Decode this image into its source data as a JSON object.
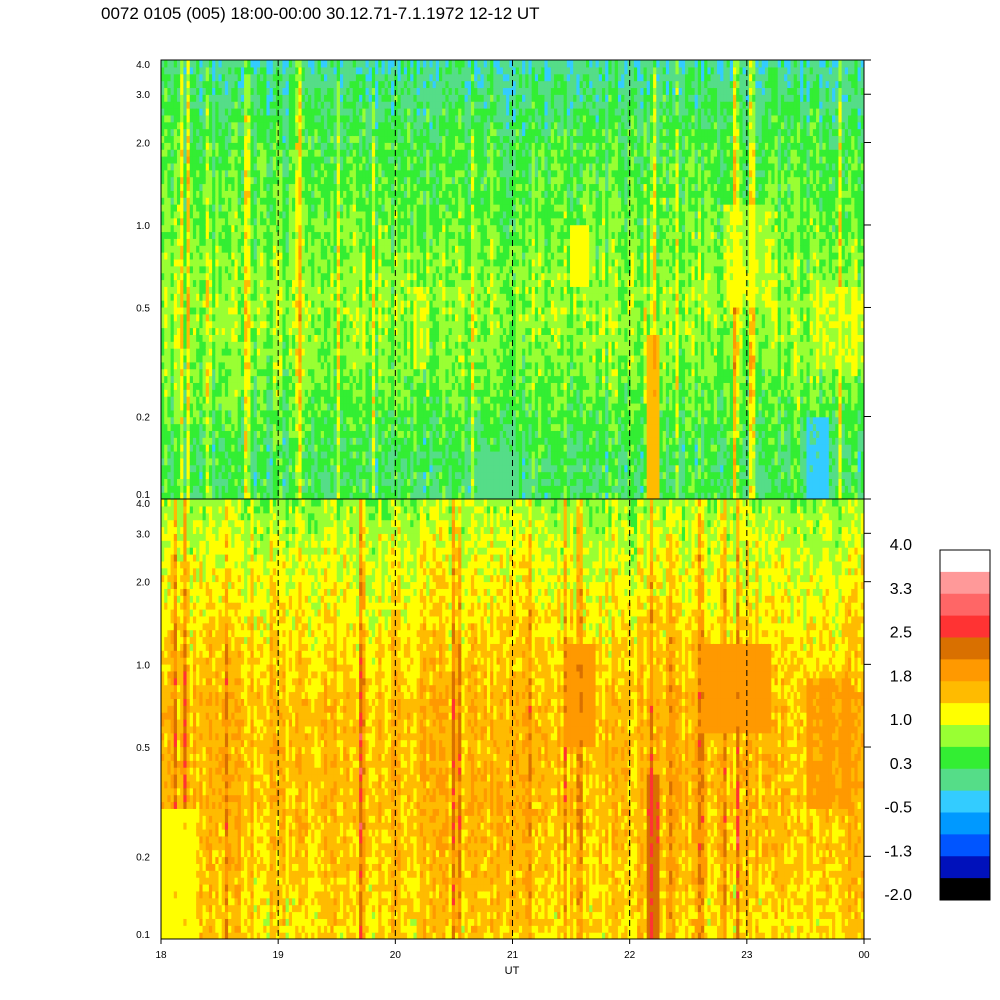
{
  "title": "0072 0105 (005) 18:00-00:00 30.12.71-7.1.1972  12-12 UT",
  "chart_data": {
    "type": "heatmap",
    "title": "0072 0105 (005) 18:00-00:00 30.12.71-7.1.1972  12-12 UT",
    "xlabel": "UT",
    "x_ticks": [
      "18",
      "19",
      "20",
      "21",
      "22",
      "23",
      "00"
    ],
    "x_range_hours_ut": [
      18,
      24
    ],
    "vertical_dashed_lines_ut": [
      19,
      20,
      21,
      22,
      23
    ],
    "y_scale": "log",
    "y_range": [
      0.1,
      4.0
    ],
    "panels": [
      {
        "name": "upper",
        "y_ticks": [
          "0.1",
          "0.2",
          "0.5",
          "1.0",
          "2.0",
          "3.0",
          "4.0"
        ],
        "y_tick_values": [
          0.1,
          0.2,
          0.5,
          1.0,
          2.0,
          3.0,
          4.0
        ],
        "background_level": 0.5,
        "level_by_height": [
          {
            "y": 0.1,
            "level": 0.3
          },
          {
            "y": 0.15,
            "level": 0.3
          },
          {
            "y": 0.25,
            "level": 0.6
          },
          {
            "y": 0.5,
            "level": 0.8
          },
          {
            "y": 1.0,
            "level": 0.6
          },
          {
            "y": 2.0,
            "level": 0.4
          },
          {
            "y": 4.0,
            "level": 0.0
          }
        ],
        "features": [
          {
            "t_start": 22.15,
            "t_end": 22.25,
            "y_from": 0.1,
            "y_to": 0.4,
            "level": 1.9
          },
          {
            "t_start": 21.5,
            "t_end": 21.65,
            "y_from": 0.6,
            "y_to": 1.0,
            "level": 1.4
          },
          {
            "t_start": 22.8,
            "t_end": 23.2,
            "y_from": 0.5,
            "y_to": 1.2,
            "level": 1.1
          },
          {
            "t_start": 23.6,
            "t_end": 24.0,
            "y_from": 0.3,
            "y_to": 0.6,
            "level": 1.1
          },
          {
            "t_start": 20.15,
            "t_end": 20.25,
            "y_from": 0.3,
            "y_to": 0.6,
            "level": 1.1
          },
          {
            "t_start": 23.5,
            "t_end": 23.7,
            "y_from": 0.1,
            "y_to": 0.2,
            "level": -0.4
          },
          {
            "t_start": 20.7,
            "t_end": 21.05,
            "y_from": 0.1,
            "y_to": 0.15,
            "level": -0.1
          }
        ]
      },
      {
        "name": "lower",
        "y_ticks": [
          "0.1",
          "0.2",
          "0.5",
          "1.0",
          "2.0",
          "3.0",
          "4.0"
        ],
        "y_tick_values": [
          0.1,
          0.2,
          0.5,
          1.0,
          2.0,
          3.0,
          4.0
        ],
        "background_level": 1.5,
        "level_by_height": [
          {
            "y": 0.1,
            "level": 1.4
          },
          {
            "y": 0.3,
            "level": 1.6
          },
          {
            "y": 0.7,
            "level": 1.6
          },
          {
            "y": 1.5,
            "level": 1.3
          },
          {
            "y": 3.0,
            "level": 1.0
          },
          {
            "y": 4.0,
            "level": 0.8
          }
        ],
        "features": [
          {
            "t_start": 22.15,
            "t_end": 22.25,
            "y_from": 0.1,
            "y_to": 0.4,
            "level": 2.7
          },
          {
            "t_start": 21.45,
            "t_end": 21.7,
            "y_from": 0.5,
            "y_to": 1.2,
            "level": 2.1
          },
          {
            "t_start": 22.6,
            "t_end": 23.2,
            "y_from": 0.55,
            "y_to": 1.2,
            "level": 2.0
          },
          {
            "t_start": 23.5,
            "t_end": 23.9,
            "y_from": 0.3,
            "y_to": 0.9,
            "level": 1.9
          },
          {
            "t_start": 18.0,
            "t_end": 18.3,
            "y_from": 0.1,
            "y_to": 0.3,
            "level": 1.0
          }
        ]
      }
    ],
    "colorbar": {
      "labels": [
        "4.0",
        "3.3",
        "2.5",
        "1.8",
        "1.0",
        "0.3",
        "-0.5",
        "-1.3",
        "-2.0"
      ],
      "label_values": [
        4.0,
        3.3,
        2.5,
        1.8,
        1.0,
        0.3,
        -0.5,
        -1.3,
        -2.0
      ],
      "range": [
        -2.0,
        4.0
      ],
      "colors_top_to_bottom": [
        "#ffffff",
        "#ff9999",
        "#ff6666",
        "#ff3333",
        "#d97000",
        "#ff9900",
        "#ffbb00",
        "#ffff00",
        "#99ff33",
        "#33ee33",
        "#55dd88",
        "#33ccff",
        "#0099ff",
        "#0055ff",
        "#0011bb",
        "#000000"
      ]
    }
  }
}
